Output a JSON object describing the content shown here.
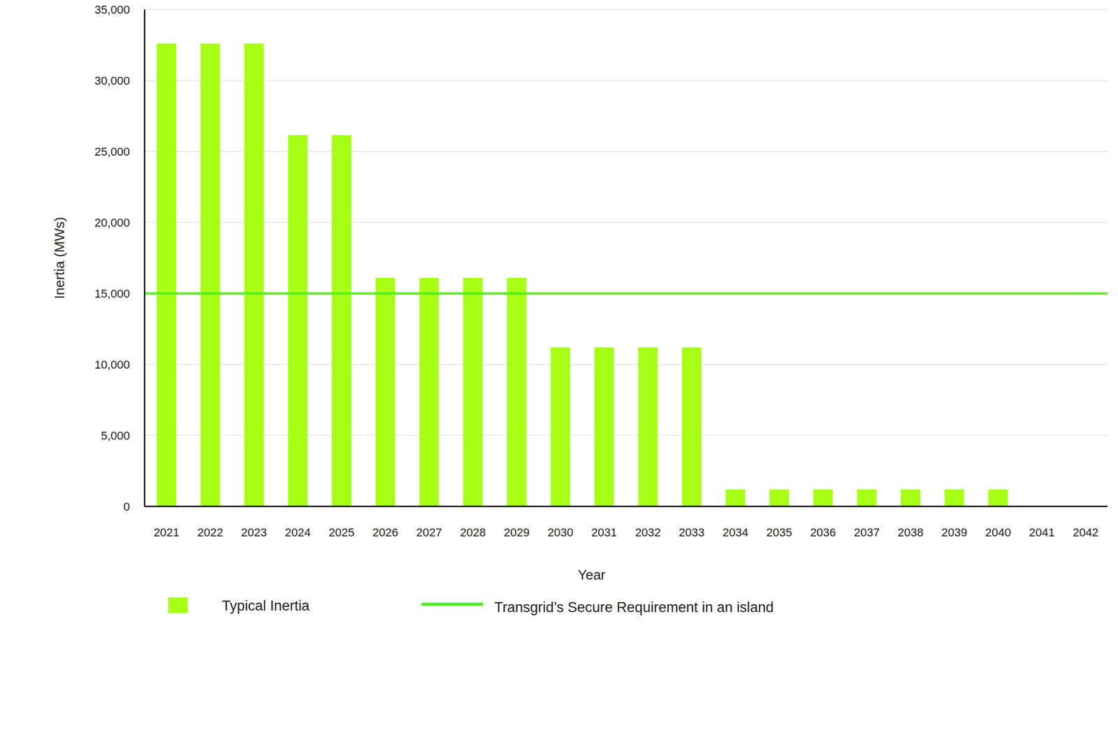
{
  "chart_data": {
    "type": "bar",
    "x_label": "Year",
    "y_label": "Inertia (MWs)",
    "categories": [
      "2021",
      "2022",
      "2023",
      "2024",
      "2025",
      "2026",
      "2027",
      "2028",
      "2029",
      "2030",
      "2031",
      "2032",
      "2033",
      "2034",
      "2035",
      "2036",
      "2037",
      "2038",
      "2039",
      "2040",
      "2041",
      "2042"
    ],
    "series": [
      {
        "name": "Typical Inertia",
        "type": "bar",
        "color": "#a6ff14",
        "values": [
          32600,
          32600,
          32600,
          26150,
          26150,
          16100,
          16100,
          16100,
          16100,
          11200,
          11200,
          11200,
          11200,
          1200,
          1200,
          1200,
          1200,
          1200,
          1200,
          1200,
          0,
          0
        ]
      },
      {
        "name": "Transgrid’s Secure Requirement in an island",
        "type": "line",
        "color": "#4cf21e",
        "values": [
          15000,
          15000,
          15000,
          15000,
          15000,
          15000,
          15000,
          15000,
          15000,
          15000,
          15000,
          15000,
          15000,
          15000,
          15000,
          15000,
          15000,
          15000,
          15000,
          15000,
          15000,
          15000
        ]
      }
    ],
    "ylim": [
      0,
      35000
    ],
    "yticks": [
      0,
      {
        "value": 5000,
        "label": "5,000"
      },
      {
        "value": 10000,
        "label": "10,000"
      },
      {
        "value": 15000,
        "label": "15,000"
      },
      {
        "value": 20000,
        "label": "20,000"
      },
      {
        "value": 25000,
        "label": "25,000"
      },
      {
        "value": 30000,
        "label": "30,000"
      },
      {
        "value": 35000,
        "label": "35,000"
      }
    ],
    "grid": true,
    "legend": "bottom-left"
  }
}
